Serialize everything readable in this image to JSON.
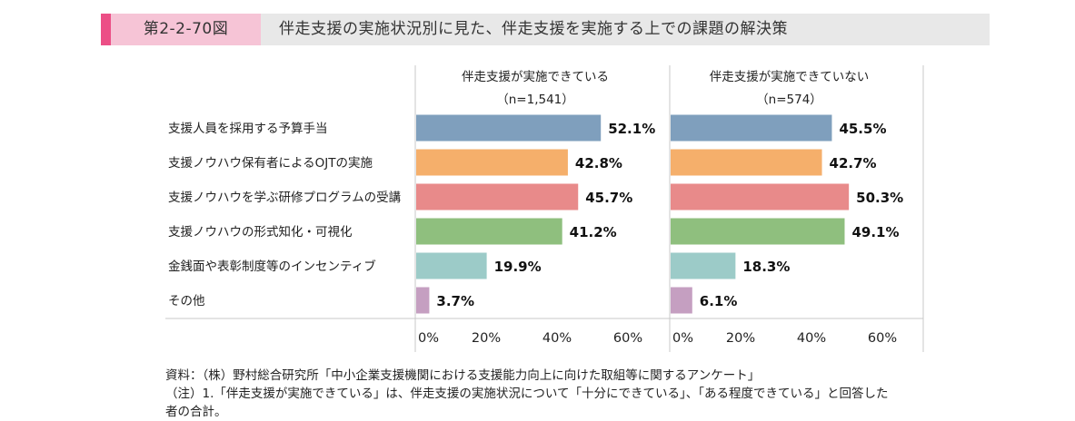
{
  "figure": {
    "label": "第2-2-70図",
    "title": "伴走支援の実施状況別に見た、伴走支援を実施する上での課題の解決策"
  },
  "chart_data": {
    "type": "bar",
    "orientation": "horizontal",
    "categories": [
      "支援人員を採用する予算手当",
      "支援ノウハウ保有者によるOJTの実施",
      "支援ノウハウを学ぶ研修プログラムの受講",
      "支援ノウハウの形式知化・可視化",
      "金銭面や表彰制度等のインセンティブ",
      "その他"
    ],
    "category_colors": [
      "#7f9fbd",
      "#f5af6b",
      "#e88a8a",
      "#8fbf7e",
      "#9ccbc8",
      "#c59fc1"
    ],
    "panels": [
      {
        "title_line1": "伴走支援が実施できている",
        "title_line2": "（n=1,541）",
        "values": [
          52.1,
          42.8,
          45.7,
          41.2,
          19.9,
          3.7
        ],
        "value_labels": [
          "52.1%",
          "42.8%",
          "45.7%",
          "41.2%",
          "19.9%",
          "3.7%"
        ]
      },
      {
        "title_line1": "伴走支援が実施できていない",
        "title_line2": "（n=574）",
        "values": [
          45.5,
          42.7,
          50.3,
          49.1,
          18.3,
          6.1
        ],
        "value_labels": [
          "45.5%",
          "42.7%",
          "50.3%",
          "49.1%",
          "18.3%",
          "6.1%"
        ]
      }
    ],
    "xlim": [
      0,
      70
    ],
    "ticks": [
      0,
      20,
      40,
      60
    ],
    "tick_labels": [
      "0%",
      "20%",
      "40%",
      "60%"
    ]
  },
  "footer": {
    "source": "資料：（株）野村総合研究所「中小企業支援機関における支援能力向上に向けた取組等に関するアンケート」",
    "note_line1": "（注）1.「伴走支援が実施できている」は、伴走支援の実施状況について「十分にできている」、「ある程度できている」と回答した",
    "note_line2": "者の合計。"
  }
}
